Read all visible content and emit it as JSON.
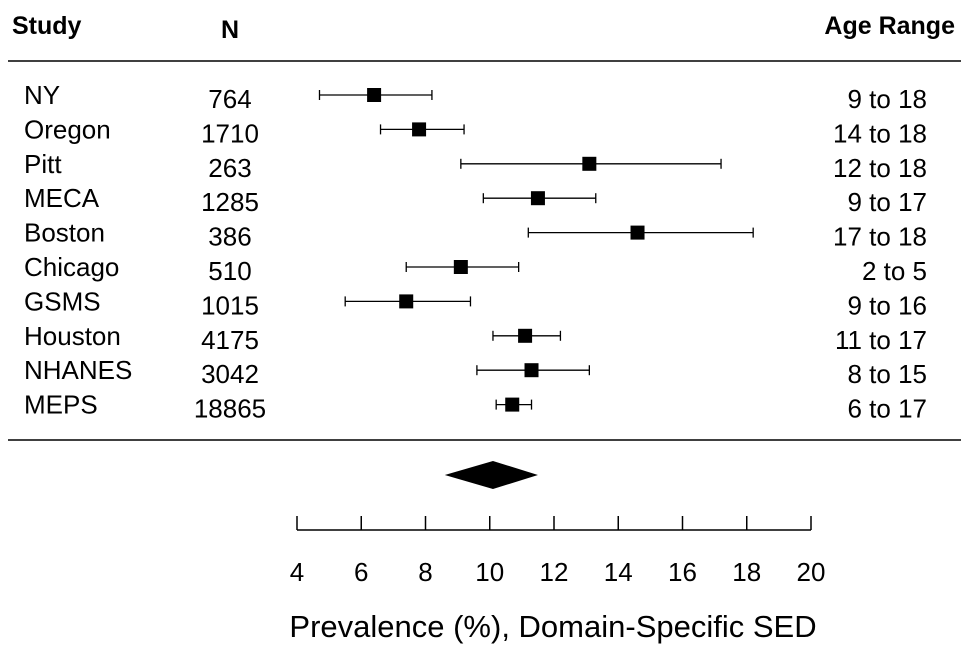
{
  "chart_data": {
    "type": "forest",
    "headers": {
      "study": "Study",
      "n": "N",
      "age": "Age Range"
    },
    "rows": [
      {
        "study": "NY",
        "n": "764",
        "age": "9 to 18",
        "estimate": 6.4,
        "lower": 4.7,
        "upper": 8.2
      },
      {
        "study": "Oregon",
        "n": "1710",
        "age": "14 to 18",
        "estimate": 7.8,
        "lower": 6.6,
        "upper": 9.2
      },
      {
        "study": "Pitt",
        "n": "263",
        "age": "12 to 18",
        "estimate": 13.1,
        "lower": 9.1,
        "upper": 17.2
      },
      {
        "study": "MECA",
        "n": "1285",
        "age": "9 to 17",
        "estimate": 11.5,
        "lower": 9.8,
        "upper": 13.3
      },
      {
        "study": "Boston",
        "n": "386",
        "age": "17 to 18",
        "estimate": 14.6,
        "lower": 11.2,
        "upper": 18.2
      },
      {
        "study": "Chicago",
        "n": "510",
        "age": "2 to 5",
        "estimate": 9.1,
        "lower": 7.4,
        "upper": 10.9
      },
      {
        "study": "GSMS",
        "n": "1015",
        "age": "9 to 16",
        "estimate": 7.4,
        "lower": 5.5,
        "upper": 9.4
      },
      {
        "study": "Houston",
        "n": "4175",
        "age": "11 to 17",
        "estimate": 11.1,
        "lower": 10.1,
        "upper": 12.2
      },
      {
        "study": "NHANES",
        "n": "3042",
        "age": "8 to 15",
        "estimate": 11.3,
        "lower": 9.6,
        "upper": 13.1
      },
      {
        "study": "MEPS",
        "n": "18865",
        "age": "6 to 17",
        "estimate": 10.7,
        "lower": 10.2,
        "upper": 11.3
      }
    ],
    "pooled": {
      "estimate": 10.1,
      "lower": 8.6,
      "upper": 11.5
    },
    "xlim": [
      4,
      20
    ],
    "xticks": [
      4,
      6,
      8,
      10,
      12,
      14,
      16,
      18,
      20
    ],
    "xlabel": "Prevalence (%), Domain-Specific SED",
    "grid": false
  }
}
